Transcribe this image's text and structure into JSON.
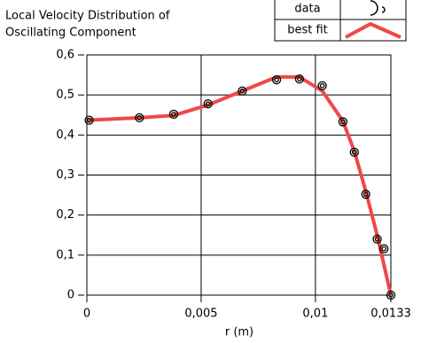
{
  "chart_data": {
    "type": "scatter",
    "title": [
      "Local Velocity Distribution of",
      "Oscillating Component"
    ],
    "xlabel": "r (m)",
    "xlim": [
      0,
      0.0133
    ],
    "xticks": [
      0,
      {
        "value": 0.005,
        "label": "0,005"
      },
      {
        "value": 0.01,
        "label": "0,01"
      },
      {
        "value": 0.0133,
        "label": "0,0133"
      }
    ],
    "ylim": [
      0,
      0.6
    ],
    "yticks": [
      0,
      {
        "value": 0.1,
        "label": "0,1"
      },
      {
        "value": 0.2,
        "label": "0,2"
      },
      {
        "value": 0.3,
        "label": "0,3"
      },
      {
        "value": 0.4,
        "label": "0,4"
      },
      {
        "value": 0.5,
        "label": "0,5"
      },
      {
        "value": 0.6,
        "label": "0,6"
      }
    ],
    "grid": true,
    "legend": "top-right",
    "series": [
      {
        "name": "data",
        "color": "#000000",
        "style": "markers",
        "x": [
          0.0001,
          0.0023,
          0.0038,
          0.0053,
          0.0068,
          0.0083,
          0.0093,
          0.0103,
          0.0112,
          0.0117,
          0.0122,
          0.0127,
          0.013,
          0.0133
        ],
        "values": [
          0.437,
          0.443,
          0.452,
          0.478,
          0.51,
          0.538,
          0.54,
          0.523,
          0.433,
          0.357,
          0.252,
          0.14,
          0.116,
          0
        ]
      },
      {
        "name": "best fit",
        "color": "#f04848",
        "style": "line",
        "x": [
          0,
          0.0023,
          0.0038,
          0.0053,
          0.0068,
          0.0083,
          0.0093,
          0.0103,
          0.0112,
          0.0117,
          0.0122,
          0.0127,
          0.0133
        ],
        "values": [
          0.437,
          0.443,
          0.449,
          0.475,
          0.51,
          0.545,
          0.545,
          0.51,
          0.435,
          0.36,
          0.26,
          0.15,
          0
        ]
      }
    ]
  }
}
